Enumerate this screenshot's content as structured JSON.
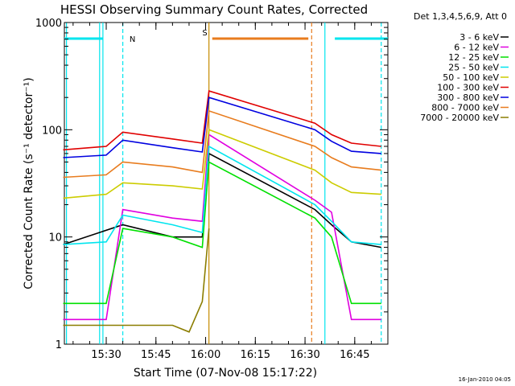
{
  "chart_data": {
    "type": "line",
    "title": "HESSI Observing Summary Count Rates, Corrected",
    "xlabel": "Start Time (07-Nov-08 15:17:22)",
    "ylabel": "Corrected Count Rate (s⁻¹ detector⁻¹)",
    "yscale": "log",
    "ylim": [
      1,
      1000
    ],
    "xlim": [
      "15:17:22",
      "16:55:00"
    ],
    "x_ticks": [
      "15:30",
      "15:45",
      "16:00",
      "16:15",
      "16:30",
      "16:45"
    ],
    "y_ticks": [
      "1",
      "10",
      "100",
      "1000"
    ],
    "legend_title": "Det 1,3,4,5,6,9, Att 0",
    "legend_position": "right",
    "footer": "16-Jan-2010 04:05",
    "markers": [
      {
        "label": "N",
        "color": "#00e5ee"
      },
      {
        "label": "S",
        "color": "#e87c1e"
      }
    ],
    "series": [
      {
        "name": "3 - 6 keV",
        "color": "#000000",
        "x": [
          "15:17",
          "15:35",
          "15:50",
          "15:59",
          "16:01",
          "16:33",
          "16:38",
          "16:44",
          "16:53"
        ],
        "y": [
          8.5,
          13,
          10,
          10,
          60,
          18,
          13,
          9,
          8
        ]
      },
      {
        "name": "6 - 12 keV",
        "color": "#e000e0",
        "x": [
          "15:17",
          "15:30",
          "15:35",
          "15:50",
          "15:59",
          "16:01",
          "16:33",
          "16:38",
          "16:44",
          "16:53"
        ],
        "y": [
          1.7,
          1.7,
          18,
          15,
          14,
          90,
          22,
          17,
          1.7,
          1.7
        ]
      },
      {
        "name": "12 - 25 keV",
        "color": "#00e000",
        "x": [
          "15:17",
          "15:30",
          "15:35",
          "15:50",
          "15:59",
          "16:01",
          "16:33",
          "16:38",
          "16:44",
          "16:53"
        ],
        "y": [
          2.4,
          2.4,
          12,
          10,
          8,
          50,
          15,
          10,
          2.4,
          2.4
        ]
      },
      {
        "name": "25 - 50 keV",
        "color": "#00e5ee",
        "x": [
          "15:17",
          "15:30",
          "15:35",
          "15:50",
          "15:59",
          "16:01",
          "16:33",
          "16:38",
          "16:44",
          "16:53"
        ],
        "y": [
          8.5,
          9,
          16,
          13,
          11,
          70,
          20,
          14,
          9,
          8.5
        ]
      },
      {
        "name": "50 - 100 keV",
        "color": "#cccc00",
        "x": [
          "15:17",
          "15:30",
          "15:35",
          "15:50",
          "15:59",
          "16:01",
          "16:33",
          "16:38",
          "16:44",
          "16:53"
        ],
        "y": [
          23,
          25,
          32,
          30,
          28,
          100,
          42,
          32,
          26,
          25
        ]
      },
      {
        "name": "100 - 300 keV",
        "color": "#e00000",
        "x": [
          "15:17",
          "15:30",
          "15:35",
          "15:50",
          "15:59",
          "16:01",
          "16:33",
          "16:38",
          "16:44",
          "16:53"
        ],
        "y": [
          65,
          70,
          95,
          82,
          75,
          230,
          115,
          90,
          75,
          70
        ]
      },
      {
        "name": "300 - 800 keV",
        "color": "#0000e0",
        "x": [
          "15:17",
          "15:30",
          "15:35",
          "15:50",
          "15:59",
          "16:01",
          "16:33",
          "16:38",
          "16:44",
          "16:53"
        ],
        "y": [
          55,
          58,
          80,
          68,
          62,
          200,
          100,
          78,
          63,
          60
        ]
      },
      {
        "name": "800 - 7000 keV",
        "color": "#e87c1e",
        "x": [
          "15:17",
          "15:30",
          "15:35",
          "15:50",
          "15:59",
          "16:01",
          "16:33",
          "16:38",
          "16:44",
          "16:53"
        ],
        "y": [
          36,
          38,
          50,
          45,
          40,
          150,
          70,
          55,
          45,
          42
        ]
      },
      {
        "name": "7000 - 20000 keV",
        "color": "#8b7d00",
        "x": [
          "15:17",
          "15:30",
          "15:35",
          "15:50",
          "15:55",
          "15:59",
          "16:01"
        ],
        "y": [
          1.5,
          1.5,
          1.5,
          1.5,
          1.3,
          2.5,
          12
        ]
      }
    ]
  }
}
